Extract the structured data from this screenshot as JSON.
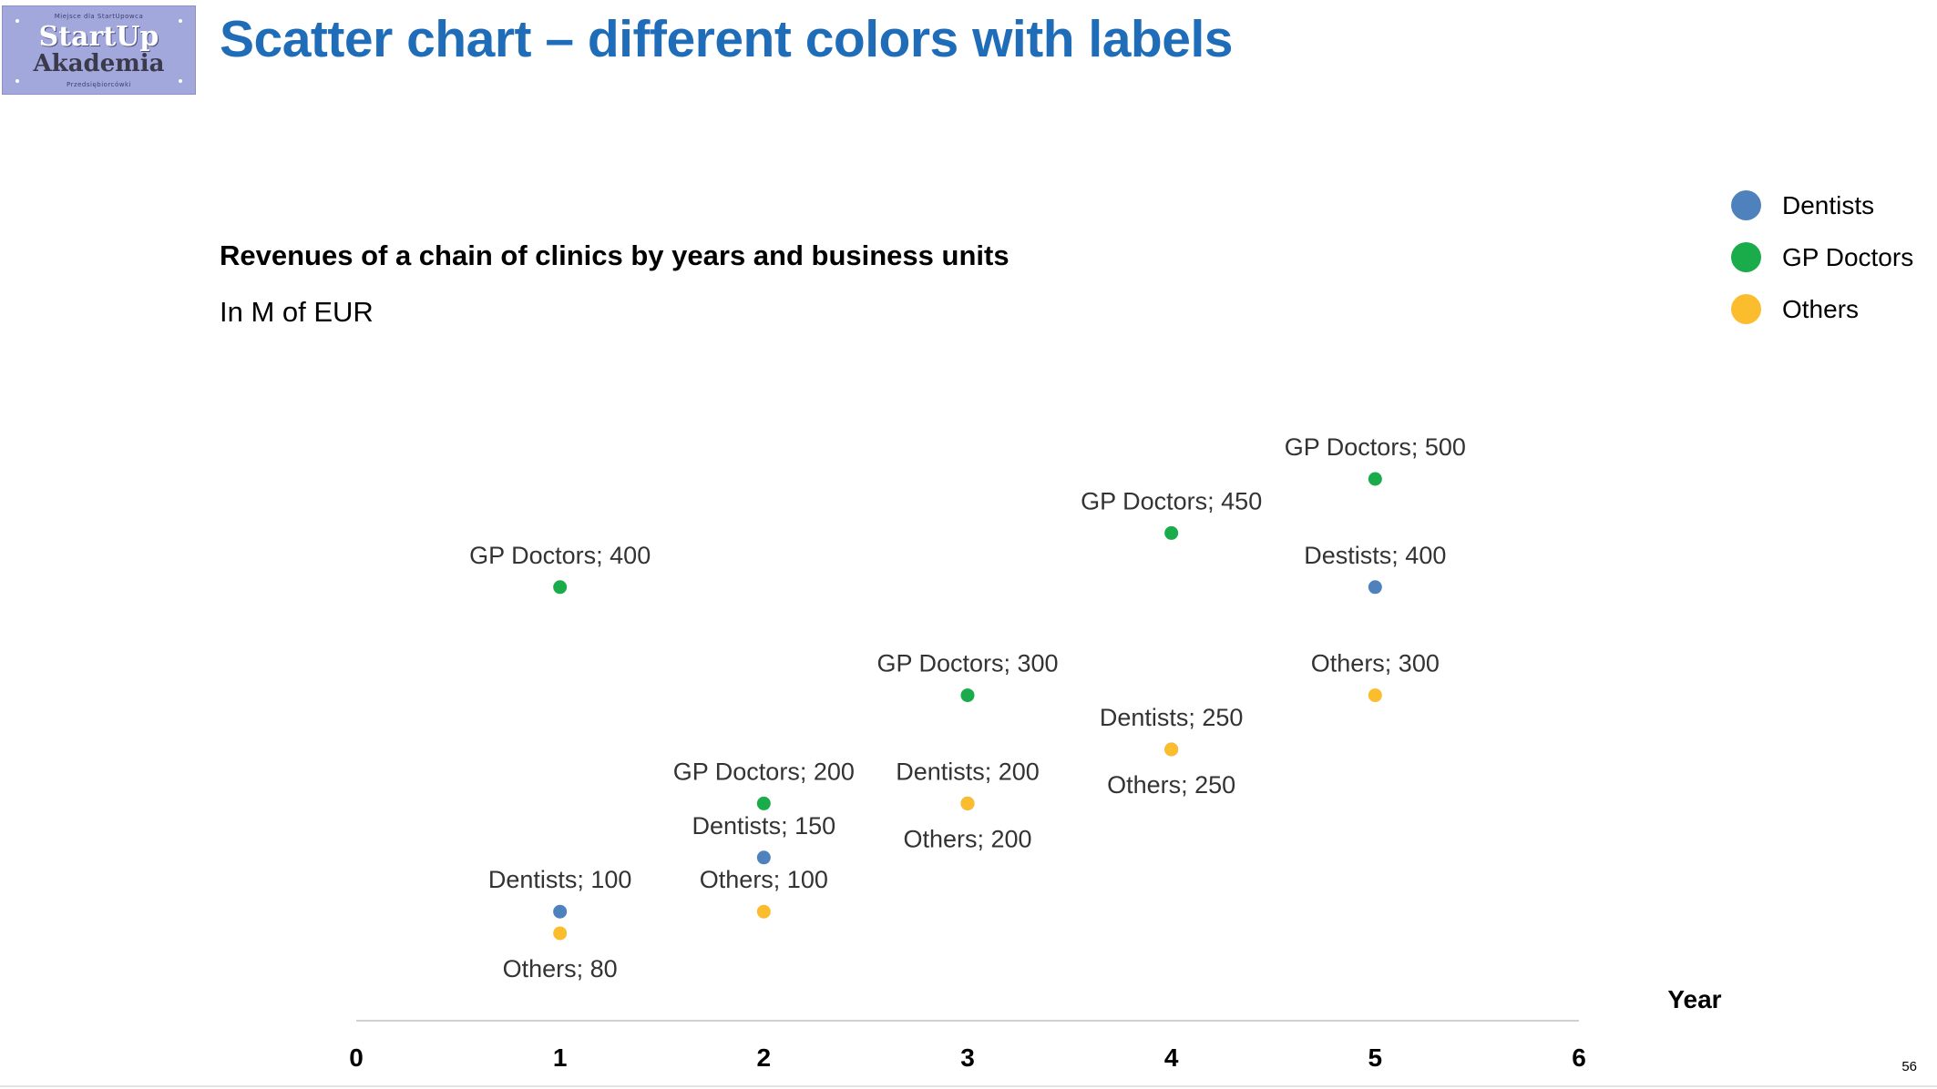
{
  "logo": {
    "top_small": "Miejsce dla StartUpowca",
    "line1": "StartUp",
    "line2": "Akademia",
    "bottom_small": "Przedsiębiorcówki"
  },
  "title": "Scatter chart – different colors with labels",
  "page_number": "56",
  "chart_data": {
    "type": "scatter",
    "title": "Revenues of a chain of clinics by years and business units",
    "subtitle": "In M of EUR",
    "xlabel": "Year",
    "ylabel": "",
    "xlim": [
      0,
      6
    ],
    "ylim": [
      0,
      550
    ],
    "x_ticks": [
      0,
      1,
      2,
      3,
      4,
      5,
      6
    ],
    "grid": false,
    "legend_position": "top-right",
    "series": [
      {
        "name": "Dentists",
        "color": "#4f81bd",
        "points": [
          {
            "x": 1,
            "y": 100,
            "label": "Dentists; 100",
            "label_pos": "above"
          },
          {
            "x": 2,
            "y": 150,
            "label": "Dentists; 150",
            "label_pos": "above"
          },
          {
            "x": 3,
            "y": 200,
            "label": "Dentists; 200",
            "label_pos": "above"
          },
          {
            "x": 4,
            "y": 250,
            "label": "Dentists; 250",
            "label_pos": "above"
          },
          {
            "x": 5,
            "y": 400,
            "label": "Destists; 400",
            "label_pos": "above"
          }
        ]
      },
      {
        "name": "GP Doctors",
        "color": "#1aab4b",
        "points": [
          {
            "x": 1,
            "y": 400,
            "label": "GP Doctors; 400",
            "label_pos": "above"
          },
          {
            "x": 2,
            "y": 200,
            "label": "GP Doctors; 200",
            "label_pos": "above"
          },
          {
            "x": 3,
            "y": 300,
            "label": "GP Doctors; 300",
            "label_pos": "above"
          },
          {
            "x": 4,
            "y": 450,
            "label": "GP Doctors; 450",
            "label_pos": "above"
          },
          {
            "x": 5,
            "y": 500,
            "label": "GP Doctors; 500",
            "label_pos": "above"
          }
        ]
      },
      {
        "name": "Others",
        "color": "#fbbc2d",
        "points": [
          {
            "x": 1,
            "y": 80,
            "label": "Others; 80",
            "label_pos": "below"
          },
          {
            "x": 2,
            "y": 100,
            "label": "Others; 100",
            "label_pos": "above"
          },
          {
            "x": 3,
            "y": 200,
            "label": "Others; 200",
            "label_pos": "below"
          },
          {
            "x": 4,
            "y": 250,
            "label": "Others; 250",
            "label_pos": "below"
          },
          {
            "x": 5,
            "y": 300,
            "label": "Others; 300",
            "label_pos": "above"
          }
        ]
      }
    ]
  }
}
